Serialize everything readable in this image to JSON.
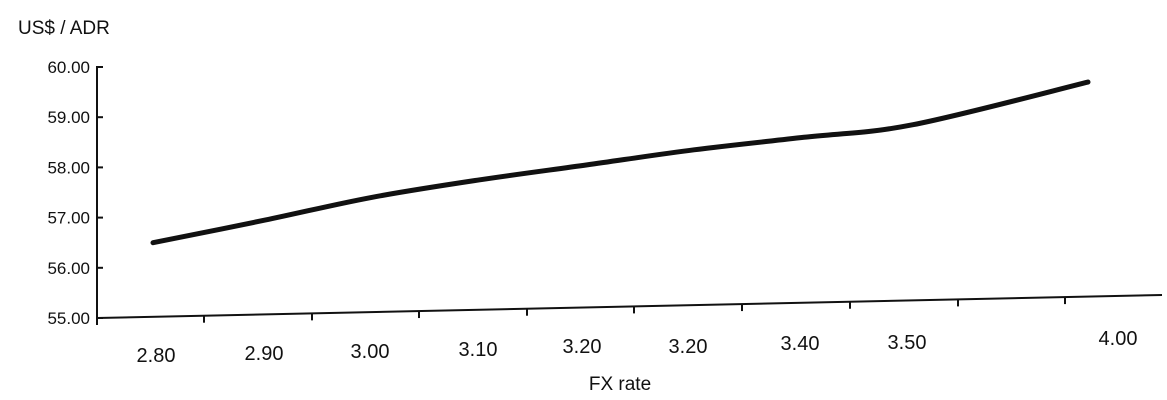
{
  "chart_data": {
    "type": "line",
    "title": "",
    "ylabel": "US$ / ADR",
    "xlabel": "FX rate",
    "categories": [
      "2.80",
      "2.90",
      "3.00",
      "3.10",
      "3.20",
      "3.20",
      "3.40",
      "3.50",
      "4.00"
    ],
    "series": [
      {
        "values": [
          56.5,
          56.95,
          57.4,
          57.75,
          58.05,
          58.35,
          58.6,
          58.85,
          59.7
        ]
      }
    ],
    "y_ticks": [
      "55.00",
      "56.00",
      "57.00",
      "58.00",
      "59.00",
      "60.00"
    ],
    "ylim": [
      55,
      60
    ],
    "grid": false,
    "legend": "none",
    "line_color": "#111111"
  }
}
